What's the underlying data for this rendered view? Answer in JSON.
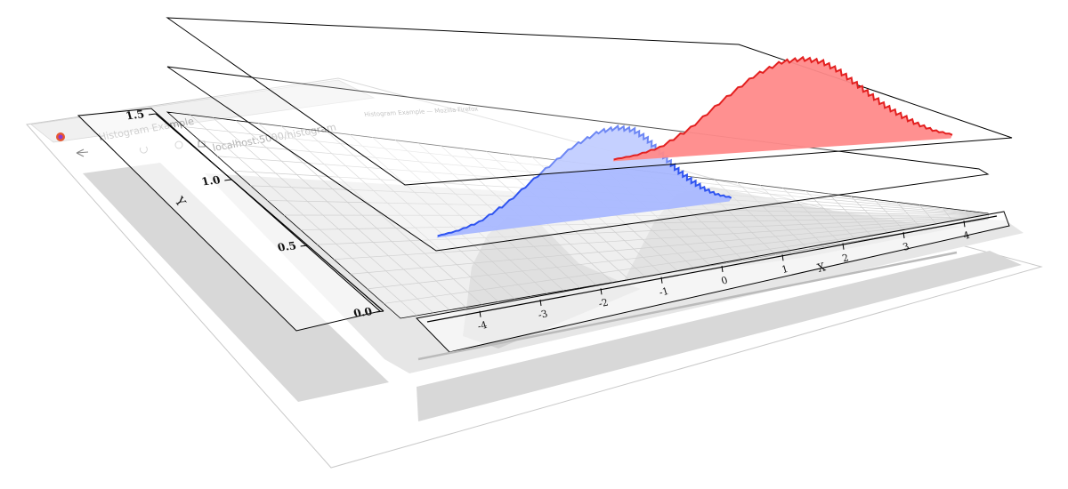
{
  "browser": {
    "tab_title": "Histogram Example",
    "url": "localhost:5000/histogram",
    "window_title": "Histogram Example — Mozilla Firefox"
  },
  "colors": {
    "blue_fill": "#a9b8ff",
    "blue_line": "#2f54f0",
    "red_fill": "#ff8a8a",
    "red_line": "#e32020",
    "grid": "#cfcfcf",
    "panel_gray": "#d8d8d8",
    "shadow_gray": "#d3d3d3"
  },
  "icons": [
    "firefox-icon",
    "back-icon",
    "reload-icon",
    "shield-icon",
    "lock-icon"
  ],
  "chart_data": {
    "type": "area",
    "ylabel": "Y",
    "xlabel": "X",
    "xlim": [
      -4.5,
      4.5
    ],
    "ylim": [
      0,
      1.5
    ],
    "x_ticks": [
      "-4",
      "-3",
      "-2",
      "-1",
      "0",
      "1",
      "2",
      "3",
      "4"
    ],
    "y_ticks": [
      "0.0",
      "0.5",
      "1.0",
      "1.5"
    ],
    "grid": true,
    "series": [
      {
        "color": "#2f54f0",
        "fill": "#a9b8ff",
        "x": [
          -4,
          -3.5,
          -3,
          -2.5,
          -2,
          -1.5,
          -1,
          -0.5,
          0,
          0.5,
          1,
          1.5,
          2,
          2.5,
          3,
          3.5,
          4
        ],
        "y": [
          0.02,
          0.05,
          0.12,
          0.3,
          0.6,
          0.85,
          0.98,
          1.0,
          0.95,
          0.84,
          0.7,
          0.56,
          0.42,
          0.3,
          0.19,
          0.1,
          0.04
        ]
      },
      {
        "color": "#e32020",
        "fill": "#ff8a8a",
        "x": [
          -4,
          -3.5,
          -3,
          -2.5,
          -2,
          -1.5,
          -1,
          -0.5,
          0,
          0.5,
          1,
          1.5,
          2,
          2.5,
          3,
          3.5,
          4
        ],
        "y": [
          0.02,
          0.05,
          0.12,
          0.3,
          0.6,
          0.85,
          0.98,
          1.0,
          0.95,
          0.84,
          0.7,
          0.56,
          0.42,
          0.3,
          0.19,
          0.1,
          0.04
        ]
      }
    ]
  }
}
